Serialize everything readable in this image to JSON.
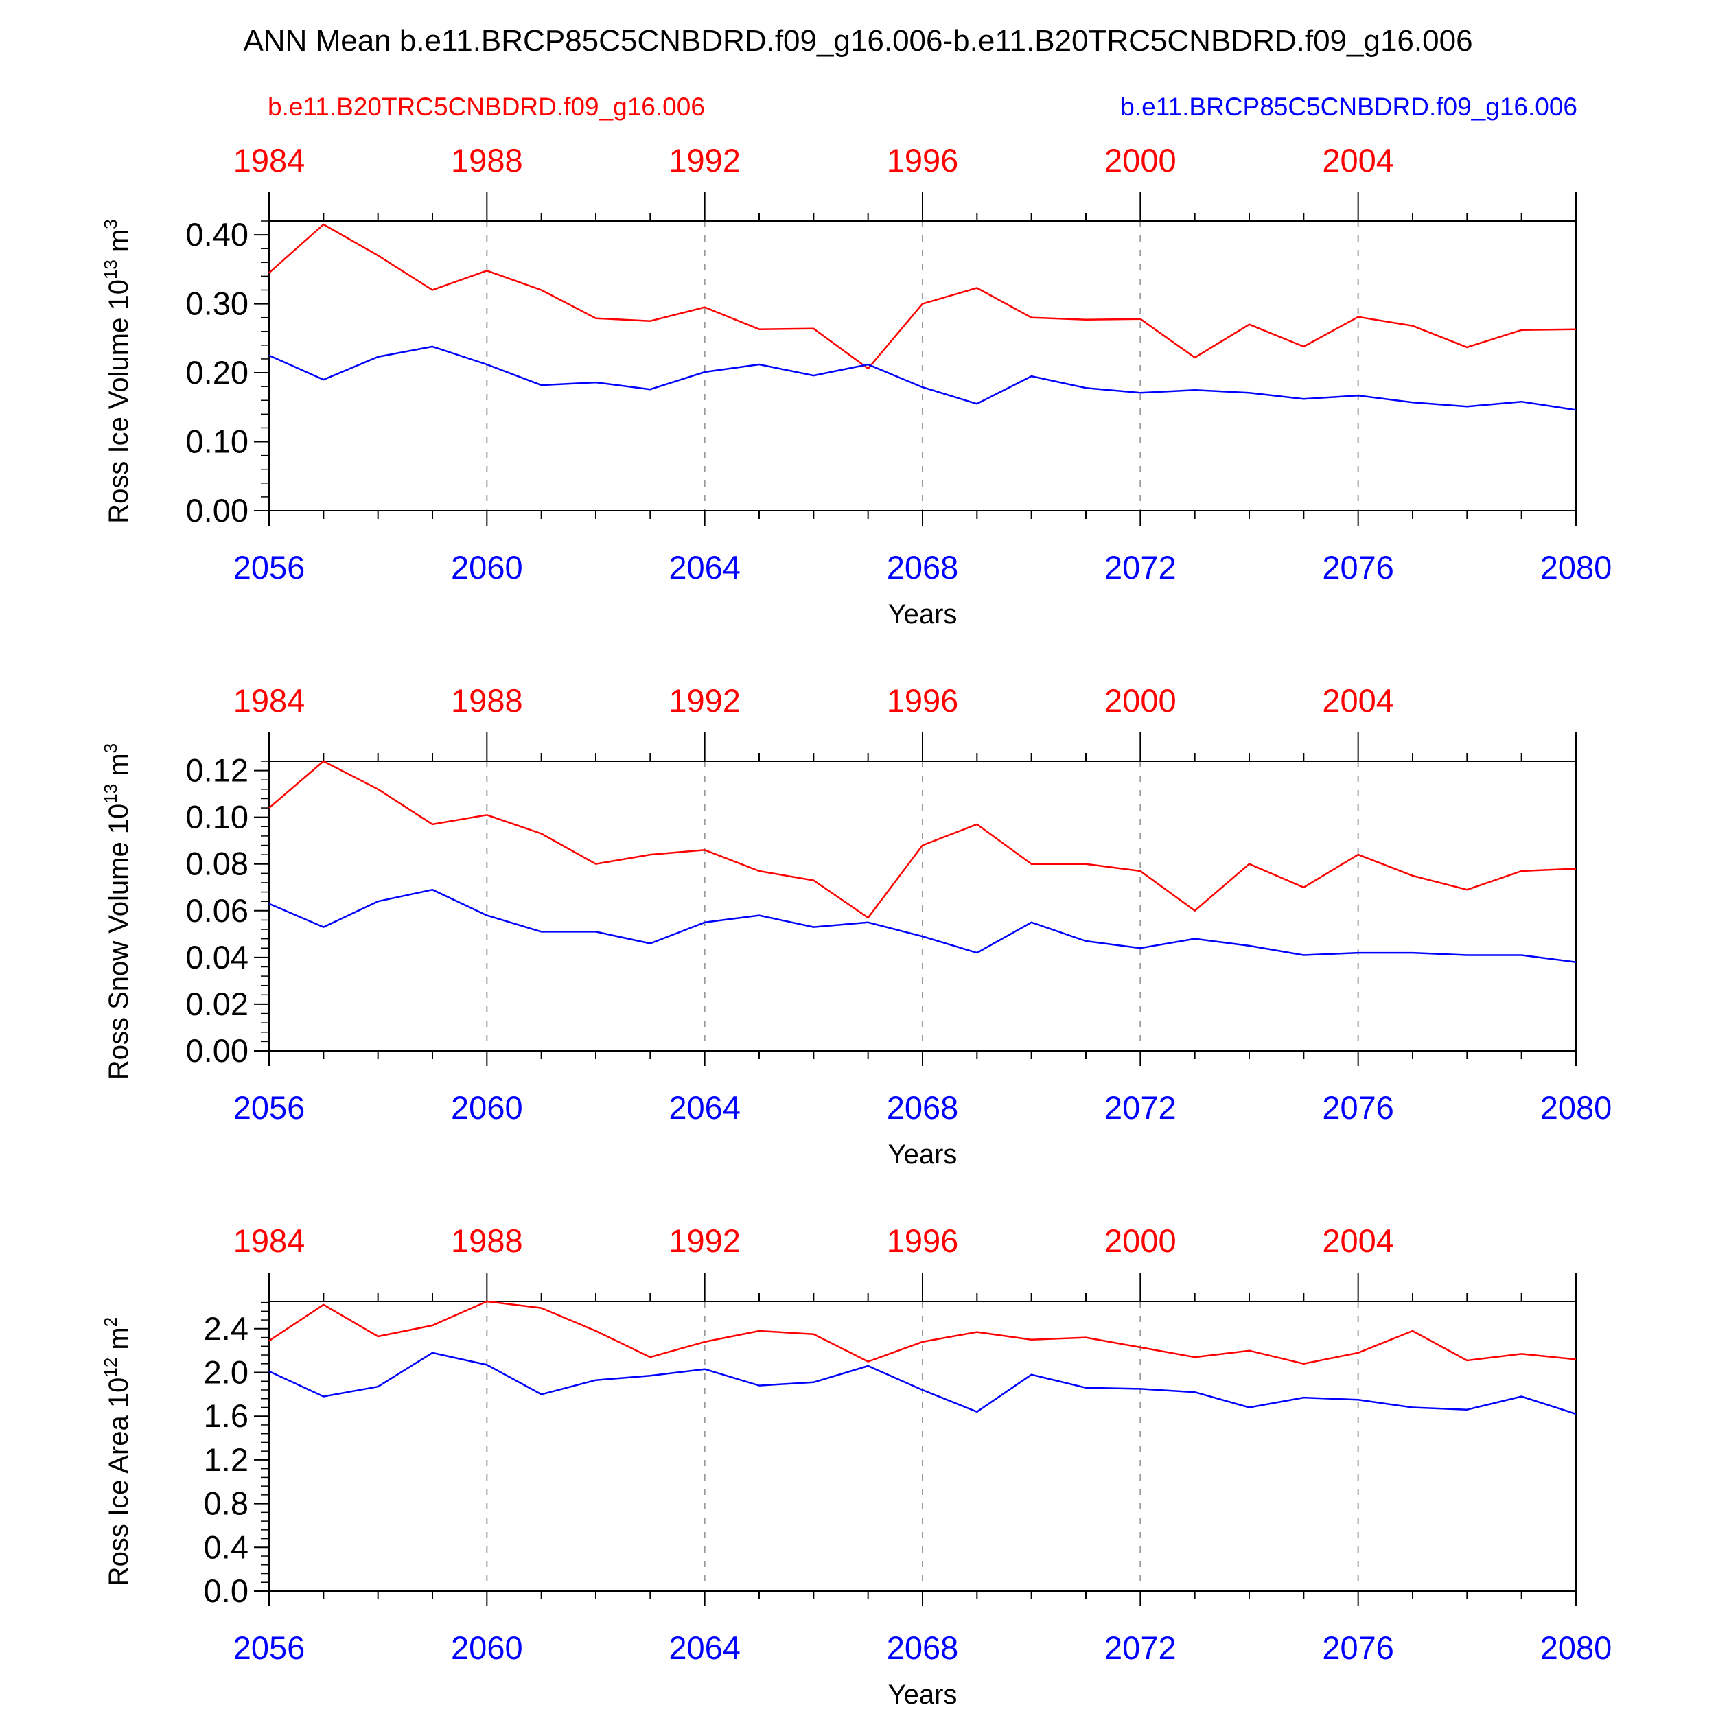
{
  "figure": {
    "title": "ANN Mean b.e11.BRCP85C5CNBDRD.f09_g16.006-b.e11.B20TRC5CNBDRD.f09_g16.006",
    "legend_red": "b.e11.B20TRC5CNBDRD.f09_g16.006",
    "legend_blue": "b.e11.BRCP85C5CNBDRD.f09_g16.006",
    "colors": {
      "red": "#ff0000",
      "blue": "#0000ff",
      "axis": "#000000",
      "grid": "#9a9a9a"
    }
  },
  "chart_data": [
    {
      "type": "line",
      "ylabel": "Ross Ice Volume 10",
      "ylabel_exp": "13",
      "ylabel_unit": " m",
      "ylabel_unit_exp": "3",
      "xlabel": "Years",
      "xlim": [
        2056,
        2080
      ],
      "ylim": [
        0,
        0.42
      ],
      "yticks": [
        "0.00",
        "0.10",
        "0.20",
        "0.30",
        "0.40"
      ],
      "ytick_values": [
        0,
        0.1,
        0.2,
        0.3,
        0.4
      ],
      "x_bottom_ticks": [
        "2056",
        "2060",
        "2064",
        "2068",
        "2072",
        "2076",
        "2080"
      ],
      "x_top_ticks": [
        "1984",
        "1988",
        "1992",
        "1996",
        "2000",
        "2004"
      ],
      "x": [
        2056,
        2057,
        2058,
        2059,
        2060,
        2061,
        2062,
        2063,
        2064,
        2065,
        2066,
        2067,
        2068,
        2069,
        2070,
        2071,
        2072,
        2073,
        2074,
        2075,
        2076,
        2077,
        2078,
        2079,
        2080
      ],
      "series": [
        {
          "name": "b.e11.B20TRC5CNBDRD.f09_g16.006",
          "color": "#ff0000",
          "values": [
            0.345,
            0.415,
            0.37,
            0.32,
            0.348,
            0.32,
            0.279,
            0.275,
            0.295,
            0.263,
            0.264,
            0.206,
            0.3,
            0.323,
            0.28,
            0.277,
            0.278,
            0.222,
            0.27,
            0.238,
            0.281,
            0.268,
            0.237,
            0.262,
            0.263
          ]
        },
        {
          "name": "b.e11.BRCP85C5CNBDRD.f09_g16.006",
          "color": "#0000ff",
          "values": [
            0.225,
            0.19,
            0.223,
            0.238,
            0.212,
            0.182,
            0.186,
            0.176,
            0.201,
            0.212,
            0.196,
            0.212,
            0.179,
            0.155,
            0.195,
            0.178,
            0.171,
            0.175,
            0.171,
            0.162,
            0.167,
            0.157,
            0.151,
            0.158,
            0.146
          ]
        }
      ]
    },
    {
      "type": "line",
      "ylabel": "Ross Snow Volume 10",
      "ylabel_exp": "13",
      "ylabel_unit": " m",
      "ylabel_unit_exp": "3",
      "xlabel": "Years",
      "xlim": [
        2056,
        2080
      ],
      "ylim": [
        0,
        0.124
      ],
      "yticks": [
        "0.00",
        "0.02",
        "0.04",
        "0.06",
        "0.08",
        "0.10",
        "0.12"
      ],
      "ytick_values": [
        0,
        0.02,
        0.04,
        0.06,
        0.08,
        0.1,
        0.12
      ],
      "x_bottom_ticks": [
        "2056",
        "2060",
        "2064",
        "2068",
        "2072",
        "2076",
        "2080"
      ],
      "x_top_ticks": [
        "1984",
        "1988",
        "1992",
        "1996",
        "2000",
        "2004"
      ],
      "x": [
        2056,
        2057,
        2058,
        2059,
        2060,
        2061,
        2062,
        2063,
        2064,
        2065,
        2066,
        2067,
        2068,
        2069,
        2070,
        2071,
        2072,
        2073,
        2074,
        2075,
        2076,
        2077,
        2078,
        2079,
        2080
      ],
      "series": [
        {
          "name": "b.e11.B20TRC5CNBDRD.f09_g16.006",
          "color": "#ff0000",
          "values": [
            0.104,
            0.124,
            0.112,
            0.097,
            0.101,
            0.093,
            0.08,
            0.084,
            0.086,
            0.077,
            0.073,
            0.057,
            0.088,
            0.097,
            0.08,
            0.08,
            0.077,
            0.06,
            0.08,
            0.07,
            0.084,
            0.075,
            0.069,
            0.077,
            0.078
          ]
        },
        {
          "name": "b.e11.BRCP85C5CNBDRD.f09_g16.006",
          "color": "#0000ff",
          "values": [
            0.063,
            0.053,
            0.064,
            0.069,
            0.058,
            0.051,
            0.051,
            0.046,
            0.055,
            0.058,
            0.053,
            0.055,
            0.049,
            0.042,
            0.055,
            0.047,
            0.044,
            0.048,
            0.045,
            0.041,
            0.042,
            0.042,
            0.041,
            0.041,
            0.038
          ]
        }
      ]
    },
    {
      "type": "line",
      "ylabel": "Ross Ice Area 10",
      "ylabel_exp": "12",
      "ylabel_unit": " m",
      "ylabel_unit_exp": "2",
      "xlabel": "Years",
      "xlim": [
        2056,
        2080
      ],
      "ylim": [
        0,
        2.65
      ],
      "yticks": [
        "0.0",
        "0.4",
        "0.8",
        "1.2",
        "1.6",
        "2.0",
        "2.4"
      ],
      "ytick_values": [
        0,
        0.4,
        0.8,
        1.2,
        1.6,
        2.0,
        2.4
      ],
      "x_bottom_ticks": [
        "2056",
        "2060",
        "2064",
        "2068",
        "2072",
        "2076",
        "2080"
      ],
      "x_top_ticks": [
        "1984",
        "1988",
        "1992",
        "1996",
        "2000",
        "2004"
      ],
      "x": [
        2056,
        2057,
        2058,
        2059,
        2060,
        2061,
        2062,
        2063,
        2064,
        2065,
        2066,
        2067,
        2068,
        2069,
        2070,
        2071,
        2072,
        2073,
        2074,
        2075,
        2076,
        2077,
        2078,
        2079,
        2080
      ],
      "series": [
        {
          "name": "b.e11.B20TRC5CNBDRD.f09_g16.006",
          "color": "#ff0000",
          "values": [
            2.29,
            2.62,
            2.33,
            2.43,
            2.65,
            2.59,
            2.38,
            2.14,
            2.28,
            2.38,
            2.35,
            2.1,
            2.28,
            2.37,
            2.3,
            2.32,
            2.23,
            2.14,
            2.2,
            2.08,
            2.18,
            2.38,
            2.11,
            2.17,
            2.12
          ]
        },
        {
          "name": "b.e11.BRCP85C5CNBDRD.f09_g16.006",
          "color": "#0000ff",
          "values": [
            2.01,
            1.78,
            1.87,
            2.18,
            2.07,
            1.8,
            1.93,
            1.97,
            2.03,
            1.88,
            1.91,
            2.06,
            1.84,
            1.64,
            1.98,
            1.86,
            1.85,
            1.82,
            1.68,
            1.77,
            1.75,
            1.68,
            1.66,
            1.78,
            1.62
          ]
        }
      ]
    }
  ]
}
